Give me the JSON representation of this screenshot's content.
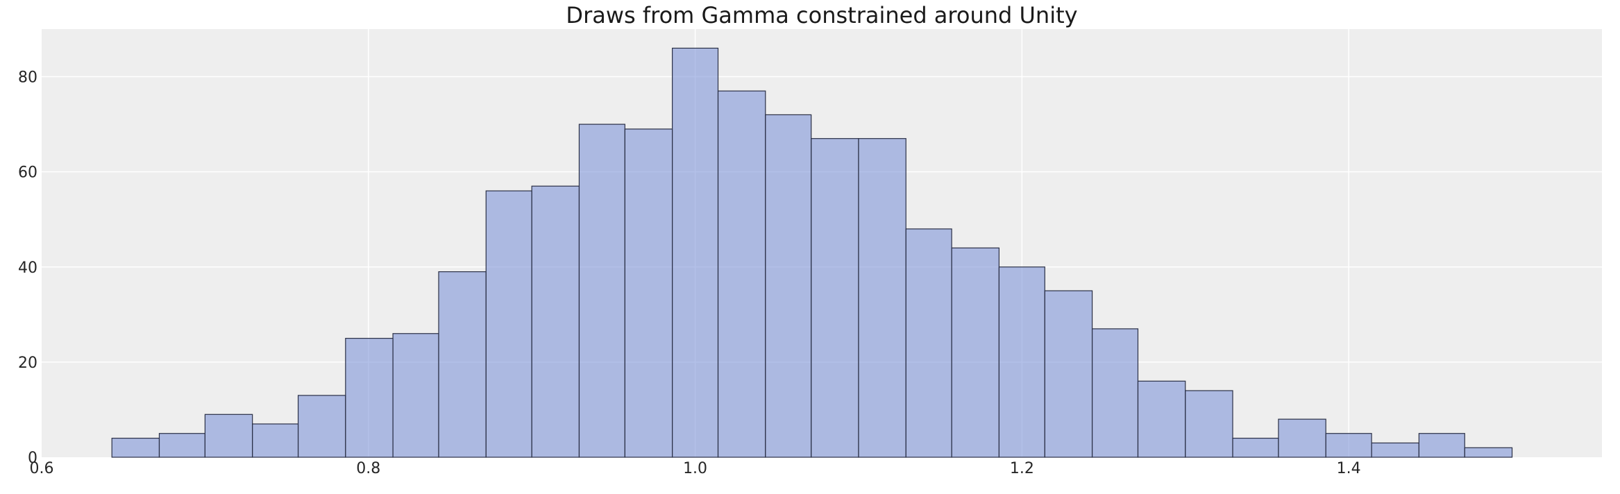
{
  "chart_data": {
    "type": "bar",
    "title": "Draws from Gamma constrained around Unity",
    "xlabel": "",
    "ylabel": "",
    "xlim": [
      0.6,
      1.555
    ],
    "ylim": [
      0,
      90
    ],
    "grid": true,
    "bin_edges": [
      0.643,
      0.672,
      0.7,
      0.729,
      0.757,
      0.786,
      0.815,
      0.843,
      0.872,
      0.9,
      0.929,
      0.957,
      0.986,
      1.014,
      1.043,
      1.071,
      1.1,
      1.129,
      1.157,
      1.186,
      1.214,
      1.243,
      1.271,
      1.3,
      1.329,
      1.357,
      1.386,
      1.414,
      1.443,
      1.471,
      1.5
    ],
    "values": [
      4,
      5,
      9,
      7,
      13,
      25,
      26,
      39,
      56,
      57,
      70,
      69,
      86,
      77,
      72,
      67,
      67,
      48,
      44,
      40,
      35,
      27,
      16,
      14,
      4,
      8,
      5,
      3,
      5,
      2
    ],
    "xticks": [
      0.6,
      0.8,
      1.0,
      1.2,
      1.4
    ],
    "xtick_labels": [
      "0.6",
      "0.8",
      "1.0",
      "1.2",
      "1.4"
    ],
    "yticks": [
      0,
      20,
      40,
      60,
      80
    ],
    "ytick_labels": [
      "0",
      "20",
      "40",
      "60",
      "80"
    ],
    "colors": {
      "bar_fill": "#8096d8",
      "bar_edge": "#2a2f45",
      "plot_background": "#eeeeee",
      "grid": "#ffffff"
    }
  }
}
